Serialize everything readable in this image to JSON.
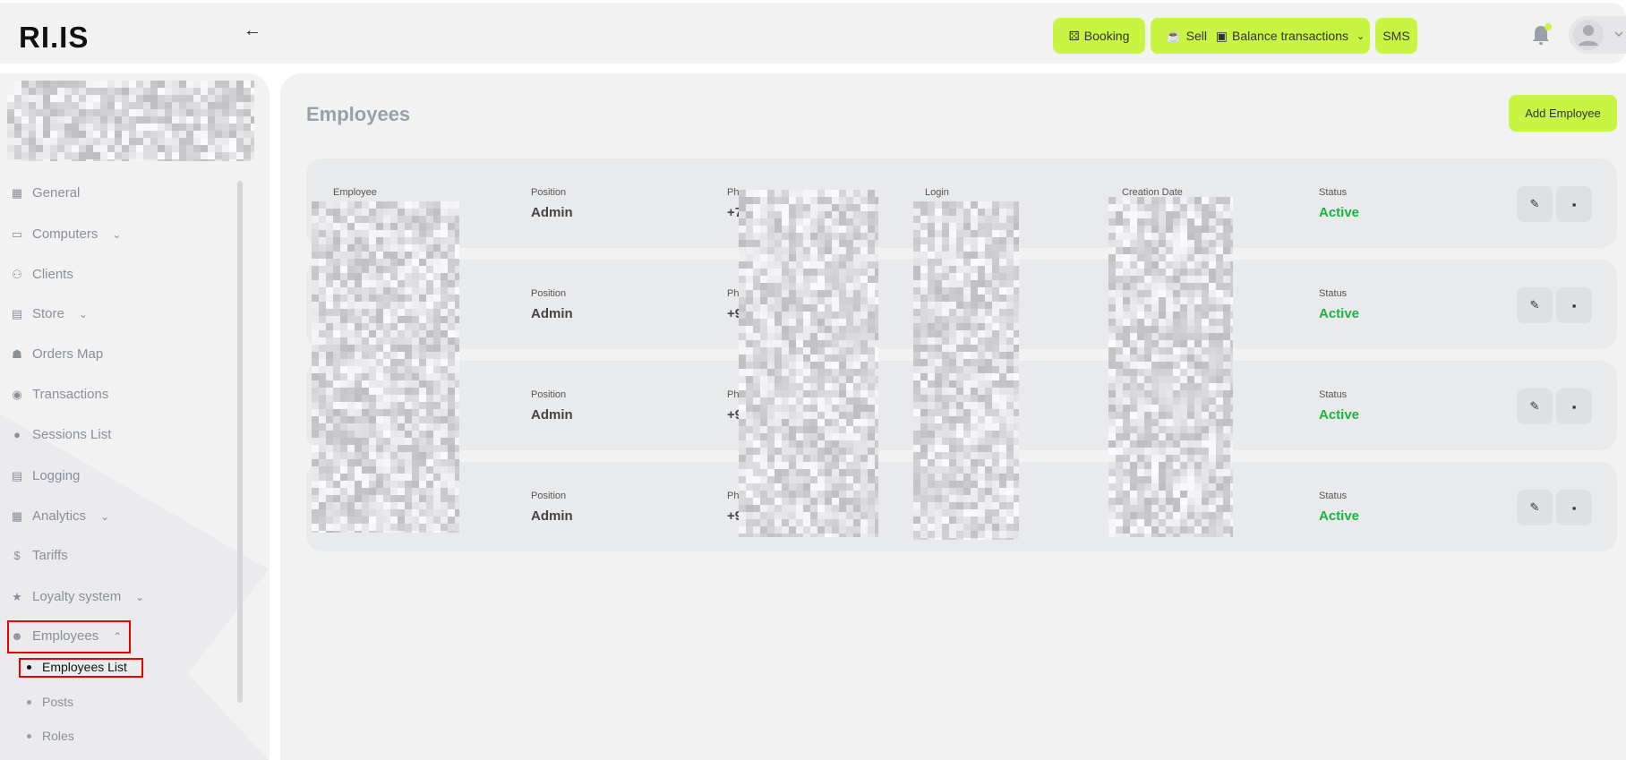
{
  "colors": {
    "accent": "#c8f542",
    "active": "#1db33f",
    "highlight": "#e00000"
  },
  "logo": "RI.IS",
  "topbar": {
    "back_icon": "arrow-left-icon",
    "buttons": [
      {
        "label": "Booking",
        "icon": "chair-icon"
      },
      {
        "label": "Sell Food",
        "icon": "cup-icon"
      },
      {
        "label": "Balance transactions",
        "icon": "wallet-icon"
      },
      {
        "label": "SMS"
      }
    ]
  },
  "sidebar": {
    "items": [
      {
        "label": "General",
        "icon": "grid-icon"
      },
      {
        "label": "Computers",
        "icon": "laptop-icon",
        "expand": "down"
      },
      {
        "label": "Clients",
        "icon": "users-icon"
      },
      {
        "label": "Store",
        "icon": "archive-icon",
        "expand": "down"
      },
      {
        "label": "Orders Map",
        "icon": "food-icon"
      },
      {
        "label": "Transactions",
        "icon": "dollar-circle-icon"
      },
      {
        "label": "Sessions List",
        "icon": "mouse-icon"
      },
      {
        "label": "Logging",
        "icon": "document-icon"
      },
      {
        "label": "Analytics",
        "icon": "dashboard-icon",
        "expand": "down"
      },
      {
        "label": "Tariffs",
        "icon": "dollar-icon"
      },
      {
        "label": "Loyalty system",
        "icon": "star-icon",
        "expand": "down"
      },
      {
        "label": "Employees",
        "icon": "user-icon",
        "expand": "up"
      }
    ],
    "subitems": [
      {
        "label": "Employees List",
        "active": true
      },
      {
        "label": "Posts"
      },
      {
        "label": "Roles"
      }
    ]
  },
  "main": {
    "title": "Employees",
    "add_button": "Add Employee",
    "columns": {
      "employee": "Employee",
      "position": "Position",
      "phone": "Phone",
      "login": "Login",
      "created": "Creation Date",
      "status": "Status"
    },
    "rows": [
      {
        "position": "Admin",
        "phone": "+7",
        "status": "Active"
      },
      {
        "position": "Admin",
        "phone": "+9",
        "status": "Active"
      },
      {
        "position": "Admin",
        "phone": "+9",
        "status": "Active"
      },
      {
        "position": "Admin",
        "phone": "+9",
        "status": "Active"
      }
    ]
  }
}
